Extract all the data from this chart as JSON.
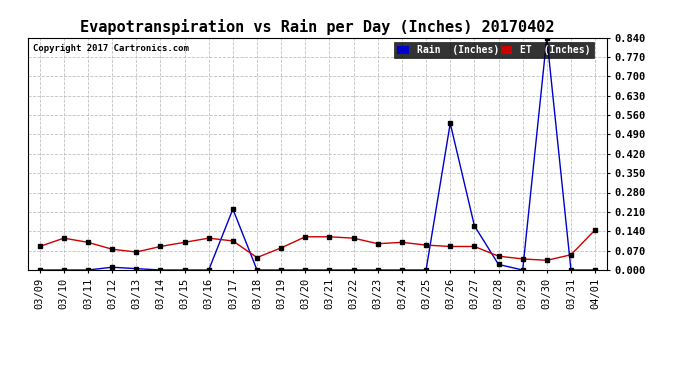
{
  "title": "Evapotranspiration vs Rain per Day (Inches) 20170402",
  "copyright": "Copyright 2017 Cartronics.com",
  "dates": [
    "03/09",
    "03/10",
    "03/11",
    "03/12",
    "03/13",
    "03/14",
    "03/15",
    "03/16",
    "03/17",
    "03/18",
    "03/19",
    "03/20",
    "03/21",
    "03/22",
    "03/23",
    "03/24",
    "03/25",
    "03/26",
    "03/27",
    "03/28",
    "03/29",
    "03/30",
    "03/31",
    "04/01"
  ],
  "rain": [
    0.0,
    0.0,
    0.0,
    0.01,
    0.005,
    0.0,
    0.0,
    0.0,
    0.22,
    0.0,
    0.0,
    0.0,
    0.0,
    0.0,
    0.0,
    0.0,
    0.0,
    0.53,
    0.16,
    0.02,
    0.0,
    0.84,
    0.0,
    0.0
  ],
  "et": [
    0.085,
    0.115,
    0.1,
    0.075,
    0.065,
    0.085,
    0.1,
    0.115,
    0.105,
    0.045,
    0.08,
    0.12,
    0.12,
    0.115,
    0.095,
    0.1,
    0.09,
    0.085,
    0.085,
    0.05,
    0.04,
    0.035,
    0.055,
    0.145
  ],
  "rain_color": "#0000cc",
  "et_color": "#cc0000",
  "ylim": [
    0.0,
    0.84
  ],
  "yticks": [
    0.0,
    0.07,
    0.14,
    0.21,
    0.28,
    0.35,
    0.42,
    0.49,
    0.56,
    0.63,
    0.7,
    0.77,
    0.84
  ],
  "background_color": "#ffffff",
  "grid_color": "#bbbbbb",
  "title_fontsize": 11,
  "tick_fontsize": 7.5,
  "legend_rain_label": "Rain  (Inches)"
}
